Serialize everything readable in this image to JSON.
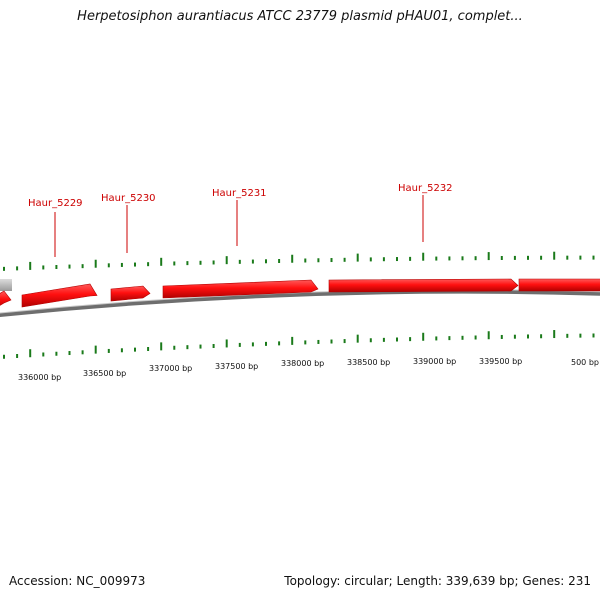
{
  "header": {
    "title": "Herpetosiphon aurantiacus ATCC 23779 plasmid pHAU01, complet..."
  },
  "footer": {
    "accession": "Accession: NC_009973",
    "summary": "Topology: circular; Length: 339,639 bp; Genes: 231"
  },
  "colors": {
    "gene": "#ff1a1a",
    "gene_dark": "#b30000",
    "label": "#cc0000",
    "tick": "#1a7a1a",
    "backbone": "#777777"
  },
  "genes": [
    {
      "label": "Haur_5229"
    },
    {
      "label": "Haur_5230"
    },
    {
      "label": "Haur_5231"
    },
    {
      "label": "Haur_5232"
    }
  ],
  "bp_labels": [
    "336000 bp",
    "336500 bp",
    "337000 bp",
    "337500 bp",
    "338000 bp",
    "338500 bp",
    "339000 bp",
    "339500 bp",
    "500 bp"
  ]
}
